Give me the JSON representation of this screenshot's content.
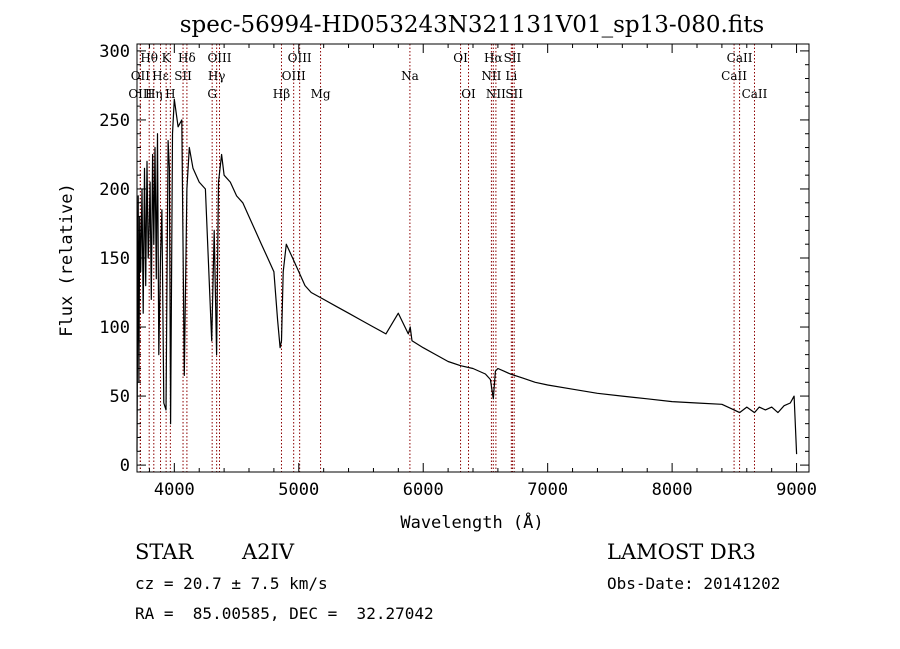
{
  "chart_data": {
    "type": "line",
    "title": "spec-56994-HD053243N321131V01_sp13-080.fits",
    "xlabel": "Wavelength (Å)",
    "ylabel": "Flux (relative)",
    "xlim": [
      3700,
      9100
    ],
    "ylim": [
      -5,
      305
    ],
    "xticks": [
      4000,
      5000,
      6000,
      7000,
      8000,
      9000
    ],
    "yticks": [
      0,
      50,
      100,
      150,
      200,
      250,
      300
    ],
    "x_minor_step": 200,
    "y_minor_step": 10,
    "series": [
      {
        "name": "spectrum",
        "x": [
          3700,
          3710,
          3715,
          3722,
          3730,
          3740,
          3750,
          3760,
          3770,
          3780,
          3790,
          3797,
          3805,
          3815,
          3825,
          3835,
          3845,
          3855,
          3865,
          3875,
          3889,
          3900,
          3915,
          3933,
          3950,
          3960,
          3970,
          3985,
          4000,
          4030,
          4060,
          4080,
          4101,
          4120,
          4150,
          4200,
          4250,
          4300,
          4320,
          4340,
          4355,
          4380,
          4400,
          4450,
          4500,
          4550,
          4600,
          4650,
          4700,
          4750,
          4800,
          4830,
          4850,
          4861,
          4875,
          4900,
          4950,
          5000,
          5050,
          5100,
          5200,
          5300,
          5400,
          5500,
          5600,
          5700,
          5800,
          5880,
          5895,
          5910,
          6000,
          6100,
          6200,
          6300,
          6400,
          6500,
          6540,
          6563,
          6580,
          6600,
          6650,
          6700,
          6800,
          6900,
          7000,
          7200,
          7400,
          7600,
          7800,
          8000,
          8200,
          8400,
          8498,
          8542,
          8600,
          8662,
          8700,
          8750,
          8800,
          8850,
          8900,
          8950,
          8980,
          9000
        ],
        "values": [
          10,
          195,
          60,
          180,
          140,
          200,
          110,
          215,
          130,
          220,
          150,
          170,
          205,
          120,
          225,
          160,
          230,
          135,
          240,
          80,
          150,
          185,
          45,
          40,
          235,
          215,
          30,
          240,
          265,
          245,
          250,
          65,
          200,
          230,
          215,
          205,
          200,
          90,
          170,
          80,
          205,
          225,
          210,
          205,
          195,
          190,
          180,
          170,
          160,
          150,
          140,
          105,
          85,
          90,
          140,
          160,
          150,
          140,
          130,
          125,
          120,
          115,
          110,
          105,
          100,
          95,
          110,
          95,
          100,
          90,
          85,
          80,
          75,
          72,
          70,
          66,
          62,
          48,
          68,
          70,
          68,
          66,
          63,
          60,
          58,
          55,
          52,
          50,
          48,
          46,
          45,
          44,
          40,
          38,
          42,
          38,
          42,
          40,
          42,
          38,
          43,
          45,
          50,
          8
        ]
      }
    ],
    "line_labels": [
      {
        "name": "Hθ",
        "wavelength": 3798,
        "row": 1
      },
      {
        "name": "OII",
        "wavelength": 3727,
        "row": 2
      },
      {
        "name": "OIII",
        "wavelength": 3727,
        "row": 3
      },
      {
        "name": "K",
        "wavelength": 3934,
        "row": 1
      },
      {
        "name": "Hε",
        "wavelength": 3889,
        "row": 2
      },
      {
        "name": "Hη",
        "wavelength": 3835,
        "row": 3
      },
      {
        "name": "Hδ",
        "wavelength": 4101,
        "row": 1
      },
      {
        "name": "SII",
        "wavelength": 4070,
        "row": 2
      },
      {
        "name": "H",
        "wavelength": 3968,
        "row": 3
      },
      {
        "name": "OIII",
        "wavelength": 4363,
        "row": 1
      },
      {
        "name": "Hγ",
        "wavelength": 4340,
        "row": 2
      },
      {
        "name": "G",
        "wavelength": 4304,
        "row": 3
      },
      {
        "name": "OIII",
        "wavelength": 5007,
        "row": 1
      },
      {
        "name": "OIII",
        "wavelength": 4959,
        "row": 2
      },
      {
        "name": "Hβ",
        "wavelength": 4861,
        "row": 3
      },
      {
        "name": "Mg",
        "wavelength": 5175,
        "row": 3
      },
      {
        "name": "Na",
        "wavelength": 5893,
        "row": 2
      },
      {
        "name": "OI",
        "wavelength": 6300,
        "row": 1
      },
      {
        "name": "OI",
        "wavelength": 6364,
        "row": 3
      },
      {
        "name": "Hα",
        "wavelength": 6563,
        "row": 1
      },
      {
        "name": "NII",
        "wavelength": 6548,
        "row": 2
      },
      {
        "name": "NII",
        "wavelength": 6584,
        "row": 3
      },
      {
        "name": "SII",
        "wavelength": 6717,
        "row": 1
      },
      {
        "name": "Li",
        "wavelength": 6708,
        "row": 2
      },
      {
        "name": "SII",
        "wavelength": 6731,
        "row": 3
      },
      {
        "name": "CaII",
        "wavelength": 8542,
        "row": 1
      },
      {
        "name": "CaII",
        "wavelength": 8498,
        "row": 2
      },
      {
        "name": "CaII",
        "wavelength": 8662,
        "row": 3
      }
    ],
    "line_colors": {
      "data": "#000000",
      "marker": "#8b0000"
    }
  },
  "info": {
    "object_class": "STAR",
    "subclass": "A2IV",
    "cz": "cz = 20.7 ± 7.5 km/s",
    "radec": "RA =  85.00585, DEC =  32.27042",
    "survey": "LAMOST DR3",
    "obs_date": "Obs-Date: 20141202"
  }
}
